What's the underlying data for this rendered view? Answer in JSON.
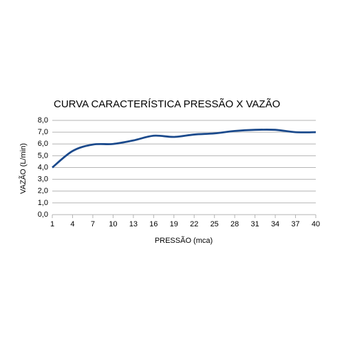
{
  "chart_data": {
    "type": "line",
    "title": "CURVA CARACTERÍSTICA PRESSÃO X VAZÃO",
    "xlabel": "PRESSÃO (mca)",
    "ylabel": "VAZÃO (L/min)",
    "x": [
      1,
      4,
      7,
      10,
      13,
      16,
      19,
      22,
      25,
      28,
      31,
      34,
      37,
      40
    ],
    "series": [
      {
        "name": "VAZÃO",
        "color": "#1b4a8c",
        "values": [
          4.0,
          5.4,
          5.95,
          6.0,
          6.3,
          6.7,
          6.6,
          6.8,
          6.9,
          7.1,
          7.2,
          7.2,
          7.0,
          7.0
        ]
      }
    ],
    "xlim": [
      1,
      40
    ],
    "xticks": [
      1,
      4,
      7,
      10,
      13,
      16,
      19,
      22,
      25,
      28,
      31,
      34,
      37,
      40
    ],
    "ylim": [
      0,
      8
    ],
    "yticks": [
      {
        "value": 0,
        "label": "0,0"
      },
      {
        "value": 1,
        "label": "1,0"
      },
      {
        "value": 2,
        "label": "2,0"
      },
      {
        "value": 3,
        "label": "3,0"
      },
      {
        "value": 4,
        "label": "4,0"
      },
      {
        "value": 5,
        "label": "5,0"
      },
      {
        "value": 6,
        "label": "6,0"
      },
      {
        "value": 7,
        "label": "7,0"
      },
      {
        "value": 8,
        "label": "8,0"
      }
    ],
    "grid": true
  }
}
